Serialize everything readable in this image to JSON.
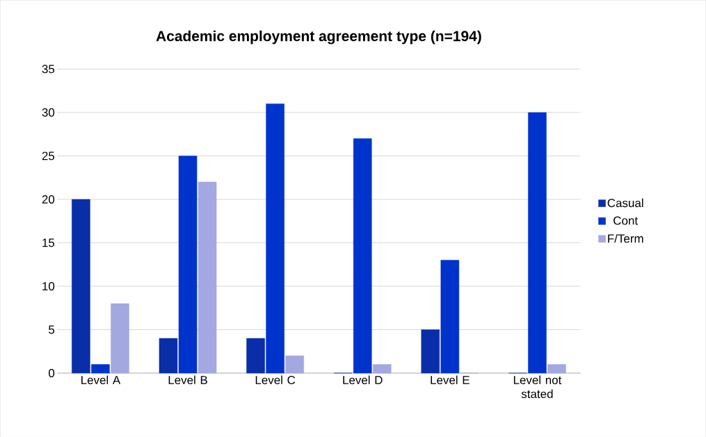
{
  "chart_data": {
    "type": "bar",
    "title": "Academic employment agreement type (n=194)",
    "categories": [
      "Level A",
      "Level B",
      "Level C",
      "Level D",
      "Level E",
      "Level not stated"
    ],
    "series": [
      {
        "name": "Casual",
        "color": "#0a2ea8",
        "values": [
          20,
          4,
          4,
          0,
          5,
          0
        ]
      },
      {
        "name": "Cont",
        "color": "#0033cc",
        "values": [
          1,
          25,
          31,
          27,
          13,
          30
        ]
      },
      {
        "name": "F/Term",
        "color": "#a3a8e0",
        "values": [
          8,
          22,
          2,
          1,
          0,
          1
        ]
      }
    ],
    "ylim": [
      0,
      35
    ],
    "yticks": [
      0,
      5,
      10,
      15,
      20,
      25,
      30,
      35
    ],
    "grid": "y",
    "legend": "right"
  }
}
